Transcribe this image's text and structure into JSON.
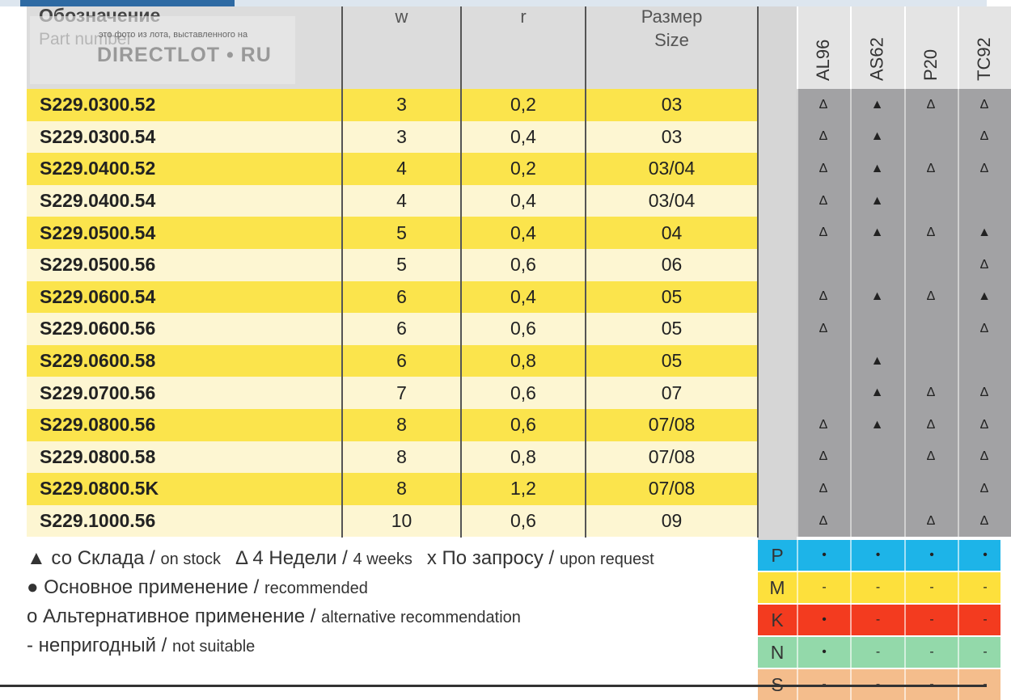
{
  "watermark": {
    "caption": "это фото из лота, выставленного на",
    "brand": "DIRECTLOT • RU"
  },
  "header": {
    "part_ru": "Обозначение",
    "part_en": "Part number",
    "w": "w",
    "r": "r",
    "size_ru": "Размер",
    "size_en": "Size",
    "grades": [
      "AL96",
      "AS62",
      "P20",
      "TC92"
    ]
  },
  "table": {
    "rows": [
      [
        "S229.0300.52",
        "3",
        "0,2",
        "03",
        [
          "Δ",
          "▲",
          "Δ",
          "Δ"
        ]
      ],
      [
        "S229.0300.54",
        "3",
        "0,4",
        "03",
        [
          "Δ",
          "▲",
          null,
          "Δ"
        ]
      ],
      [
        "S229.0400.52",
        "4",
        "0,2",
        "03/04",
        [
          "Δ",
          "▲",
          "Δ",
          "Δ"
        ]
      ],
      [
        "S229.0400.54",
        "4",
        "0,4",
        "03/04",
        [
          "Δ",
          "▲",
          null,
          null
        ]
      ],
      [
        "S229.0500.54",
        "5",
        "0,4",
        "04",
        [
          "Δ",
          "▲",
          "Δ",
          "▲"
        ]
      ],
      [
        "S229.0500.56",
        "5",
        "0,6",
        "06",
        [
          null,
          null,
          null,
          "Δ"
        ]
      ],
      [
        "S229.0600.54",
        "6",
        "0,4",
        "05",
        [
          "Δ",
          "▲",
          "Δ",
          "▲"
        ]
      ],
      [
        "S229.0600.56",
        "6",
        "0,6",
        "05",
        [
          "Δ",
          null,
          null,
          "Δ"
        ]
      ],
      [
        "S229.0600.58",
        "6",
        "0,8",
        "05",
        [
          null,
          "▲",
          null,
          null
        ]
      ],
      [
        "S229.0700.56",
        "7",
        "0,6",
        "07",
        [
          null,
          "▲",
          "Δ",
          "Δ"
        ]
      ],
      [
        "S229.0800.56",
        "8",
        "0,6",
        "07/08",
        [
          "Δ",
          "▲",
          "Δ",
          "Δ"
        ]
      ],
      [
        "S229.0800.58",
        "8",
        "0,8",
        "07/08",
        [
          "Δ",
          null,
          "Δ",
          "Δ"
        ]
      ],
      [
        "S229.0800.5K",
        "8",
        "1,2",
        "07/08",
        [
          "Δ",
          null,
          null,
          "Δ"
        ]
      ],
      [
        "S229.1000.56",
        "10",
        "0,6",
        "09",
        [
          "Δ",
          null,
          "Δ",
          "Δ"
        ]
      ]
    ]
  },
  "legend": [
    {
      "main": "▲ со Склада / ",
      "note": "on stock"
    },
    {
      "main": "Δ 4 Недели / ",
      "note": "4 weeks"
    },
    {
      "main": "x По запросу / ",
      "note": "upon request"
    },
    {
      "main": "● Основное применение / ",
      "note": "recommended"
    },
    {
      "main": "o Альтернативное применение / ",
      "note": "alternative recommendation"
    },
    {
      "main": "- непригодный / ",
      "note": "not suitable"
    }
  ],
  "materials": [
    {
      "code": "P",
      "color": "#1db4e8",
      "marks": [
        "•",
        "•",
        "•",
        "•"
      ]
    },
    {
      "code": "M",
      "color": "#fde03c",
      "marks": [
        "-",
        "-",
        "-",
        "-"
      ]
    },
    {
      "code": "K",
      "color": "#f33b1f",
      "marks": [
        "•",
        "-",
        "-",
        "-"
      ]
    },
    {
      "code": "N",
      "color": "#93d9aa",
      "marks": [
        "•",
        "-",
        "-",
        "-"
      ]
    },
    {
      "code": "S",
      "color": "#f4bd8c",
      "marks": [
        "-",
        "-",
        "-",
        "-"
      ]
    }
  ]
}
